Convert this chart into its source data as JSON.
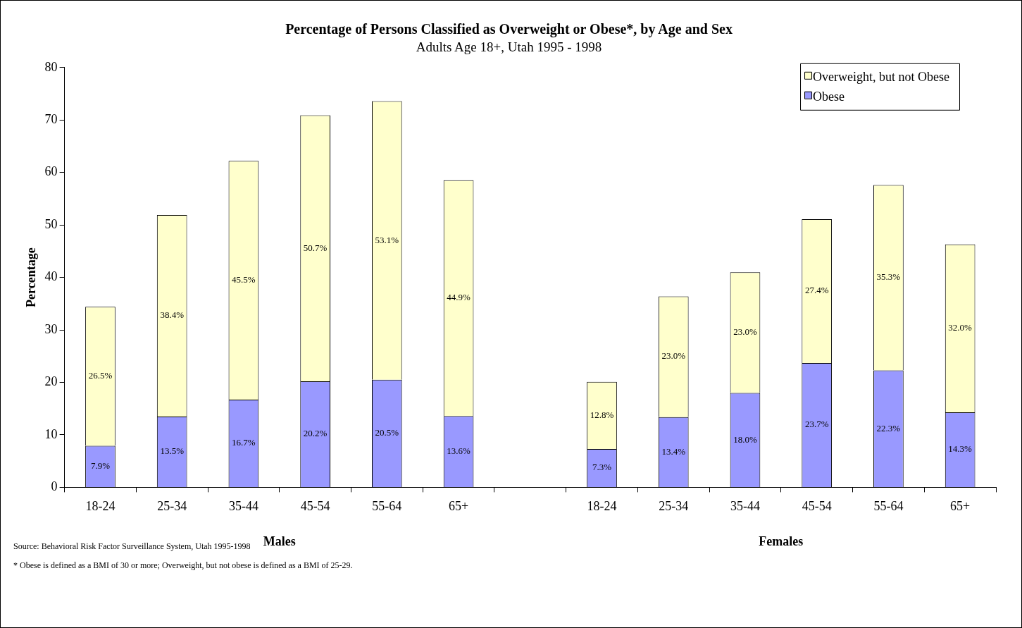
{
  "chart_data": {
    "type": "bar",
    "title": "Percentage of Persons Classified as Overweight or Obese*, by Age and Sex",
    "subtitle": "Adults Age 18+, Utah 1995 - 1998",
    "ylabel": "Percentage",
    "categories": [
      "18-24",
      "25-34",
      "35-44",
      "45-54",
      "55-64",
      "65+",
      null,
      "18-24",
      "25-34",
      "35-44",
      "45-54",
      "55-64",
      "65+"
    ],
    "stacked": true,
    "series": [
      {
        "name": "Obese",
        "color": "#9999ff",
        "values": [
          7.9,
          13.5,
          16.7,
          20.2,
          20.5,
          13.6,
          null,
          7.3,
          13.4,
          18.0,
          23.7,
          22.3,
          14.3
        ],
        "value_labels": [
          "7.9%",
          "13.5%",
          "16.7%",
          "20.2%",
          "20.5%",
          "13.6%",
          null,
          "7.3%",
          "13.4%",
          "18.0%",
          "23.7%",
          "22.3%",
          "14.3%"
        ]
      },
      {
        "name": "Overweight, but not Obese",
        "color": "#ffffcc",
        "values": [
          26.5,
          38.4,
          45.5,
          50.7,
          53.1,
          44.9,
          null,
          12.8,
          23.0,
          23.0,
          27.4,
          35.3,
          32.0
        ],
        "value_labels": [
          "26.5%",
          "38.4%",
          "45.5%",
          "50.7%",
          "53.1%",
          "44.9%",
          null,
          "12.8%",
          "23.0%",
          "23.0%",
          "27.4%",
          "35.3%",
          "32.0%"
        ]
      }
    ],
    "ylim": [
      0,
      80
    ],
    "yticks": [
      0,
      10,
      20,
      30,
      40,
      50,
      60,
      70,
      80
    ],
    "grid": false,
    "legend": "top right",
    "annotations": [
      "Males",
      "Females",
      "Source: Behavioral Risk Factor Surveillance System, Utah 1995-1998",
      "* Obese is defined as a BMI of 30 or more; Overweight, but not obese is defined as a BMI of 25-29."
    ]
  }
}
